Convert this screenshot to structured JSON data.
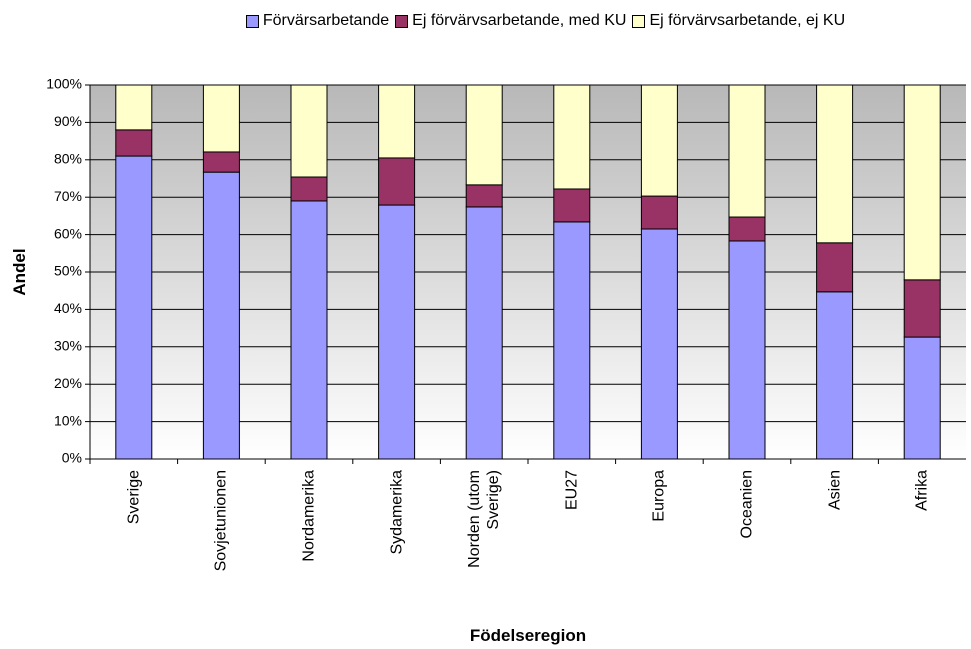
{
  "chart_data": {
    "type": "stacked-bar",
    "categories": [
      "Sverige",
      "Sovjetunionen",
      "Nordamerika",
      "Sydamerika",
      "Norden (utom Sverige)",
      "EU27",
      "Europa",
      "Oceanien",
      "Asien",
      "Afrika"
    ],
    "series": [
      {
        "name": "Förvärsarbetande",
        "color": "#9999ff",
        "values": [
          81.0,
          76.7,
          69.0,
          67.9,
          67.4,
          63.4,
          61.5,
          58.3,
          44.7,
          32.6
        ]
      },
      {
        "name": "Ej förvärvsarbetande, med KU",
        "color": "#993366",
        "values": [
          7.0,
          5.4,
          6.4,
          12.6,
          5.9,
          8.8,
          8.8,
          6.4,
          13.1,
          15.3
        ]
      },
      {
        "name": "Ej förvärvsarbetande, ej KU",
        "color": "#ffffcc",
        "values": [
          12.0,
          17.9,
          24.6,
          19.5,
          26.7,
          27.8,
          29.7,
          35.3,
          42.2,
          52.1
        ]
      }
    ],
    "ylim": [
      0,
      100
    ],
    "yticks": [
      {
        "value": 0,
        "label": "0%"
      },
      {
        "value": 10,
        "label": "10%"
      },
      {
        "value": 20,
        "label": "20%"
      },
      {
        "value": 30,
        "label": "30%"
      },
      {
        "value": 40,
        "label": "40%"
      },
      {
        "value": 50,
        "label": "50%"
      },
      {
        "value": 60,
        "label": "60%"
      },
      {
        "value": 70,
        "label": "70%"
      },
      {
        "value": 80,
        "label": "80%"
      },
      {
        "value": 90,
        "label": "90%"
      },
      {
        "value": 100,
        "label": "100%"
      }
    ],
    "x_label": "Födelseregion",
    "y_label": "Andel",
    "grid": true
  }
}
